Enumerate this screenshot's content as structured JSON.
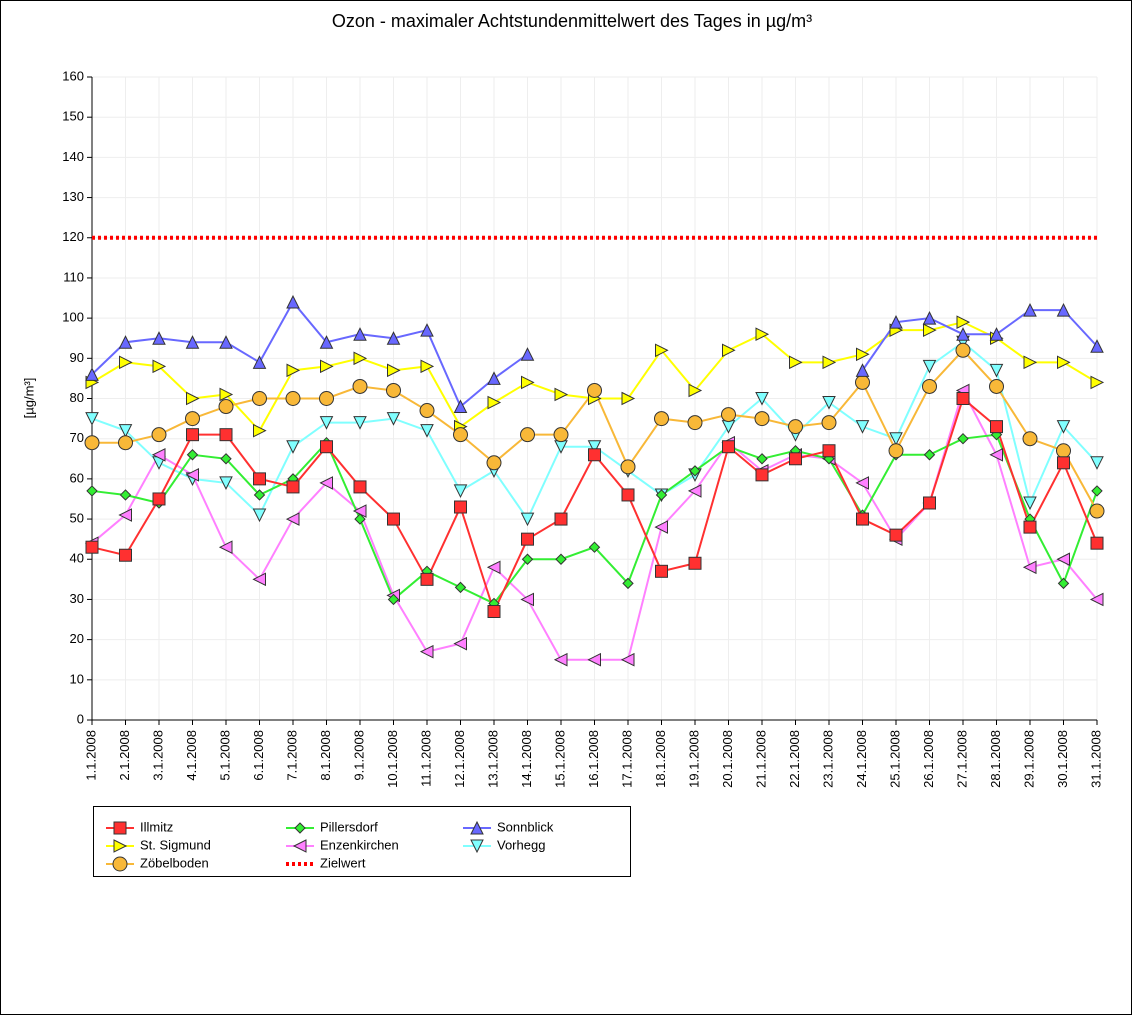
{
  "chart_data": {
    "type": "line",
    "title": "Ozon -  maximaler Achtstundenmittelwert des Tages in µg/m³",
    "y_label": "[µg/m³]",
    "categories": [
      "1.1.2008",
      "2.1.2008",
      "3.1.2008",
      "4.1.2008",
      "5.1.2008",
      "6.1.2008",
      "7.1.2008",
      "8.1.2008",
      "9.1.2008",
      "10.1.2008",
      "11.1.2008",
      "12.1.2008",
      "13.1.2008",
      "14.1.2008",
      "15.1.2008",
      "16.1.2008",
      "17.1.2008",
      "18.1.2008",
      "19.1.2008",
      "20.1.2008",
      "21.1.2008",
      "22.1.2008",
      "23.1.2008",
      "24.1.2008",
      "25.1.2008",
      "26.1.2008",
      "27.1.2008",
      "28.1.2008",
      "29.1.2008",
      "30.1.2008",
      "31.1.2008"
    ],
    "ylim": [
      0,
      160
    ],
    "yticks": [
      0,
      10,
      20,
      30,
      40,
      50,
      60,
      70,
      80,
      90,
      100,
      110,
      120,
      130,
      140,
      150,
      160
    ],
    "grid": true,
    "series": [
      {
        "name": "Illmitz",
        "color": "#ff3030",
        "marker": "square",
        "values": [
          43,
          41,
          55,
          71,
          71,
          60,
          58,
          68,
          58,
          50,
          35,
          53,
          27,
          45,
          50,
          66,
          56,
          37,
          39,
          68,
          61,
          65,
          67,
          50,
          46,
          54,
          80,
          73,
          48,
          64,
          44
        ]
      },
      {
        "name": "Pillersdorf",
        "color": "#33ee33",
        "marker": "diamond",
        "values": [
          57,
          56,
          54,
          66,
          65,
          56,
          60,
          69,
          50,
          30,
          37,
          33,
          29,
          40,
          40,
          43,
          34,
          56,
          62,
          68,
          65,
          67,
          65,
          51,
          66,
          66,
          70,
          71,
          50,
          34,
          57
        ]
      },
      {
        "name": "Sonnblick",
        "color": "#6868ff",
        "marker": "triangle-up",
        "values": [
          86,
          94,
          95,
          94,
          94,
          89,
          104,
          94,
          96,
          95,
          97,
          78,
          85,
          91,
          null,
          null,
          null,
          null,
          null,
          null,
          null,
          null,
          null,
          87,
          99,
          100,
          96,
          96,
          102,
          102,
          93
        ]
      },
      {
        "name": "St. Sigmund",
        "color": "#ffff00",
        "marker": "triangle-right",
        "values": [
          84,
          89,
          88,
          80,
          81,
          72,
          87,
          88,
          90,
          87,
          88,
          73,
          79,
          84,
          81,
          80,
          80,
          92,
          82,
          92,
          96,
          89,
          89,
          91,
          97,
          97,
          99,
          95,
          89,
          89,
          84
        ]
      },
      {
        "name": "Enzenkirchen",
        "color": "#ff80ff",
        "marker": "triangle-left",
        "values": [
          44,
          51,
          66,
          61,
          43,
          35,
          50,
          59,
          52,
          31,
          17,
          19,
          38,
          30,
          15,
          15,
          15,
          48,
          57,
          69,
          62,
          66,
          65,
          59,
          45,
          54,
          82,
          66,
          38,
          40,
          30
        ]
      },
      {
        "name": "Vorhegg",
        "color": "#80ffff",
        "marker": "triangle-down",
        "values": [
          75,
          72,
          64,
          60,
          59,
          51,
          68,
          74,
          74,
          75,
          72,
          57,
          62,
          50,
          68,
          68,
          62,
          56,
          61,
          73,
          80,
          71,
          79,
          73,
          70,
          88,
          94,
          87,
          54,
          73,
          64
        ]
      },
      {
        "name": "Zöbelboden",
        "color": "#f8b838",
        "marker": "circle",
        "values": [
          69,
          69,
          71,
          75,
          78,
          80,
          80,
          80,
          83,
          82,
          77,
          71,
          64,
          71,
          71,
          82,
          63,
          75,
          74,
          76,
          75,
          73,
          74,
          84,
          67,
          83,
          92,
          83,
          70,
          67,
          52
        ]
      },
      {
        "name": "Zielwert",
        "color": "#ff0000",
        "marker": "none",
        "dashed": true,
        "values": [
          120,
          120,
          120,
          120,
          120,
          120,
          120,
          120,
          120,
          120,
          120,
          120,
          120,
          120,
          120,
          120,
          120,
          120,
          120,
          120,
          120,
          120,
          120,
          120,
          120,
          120,
          120,
          120,
          120,
          120,
          120
        ]
      }
    ]
  }
}
